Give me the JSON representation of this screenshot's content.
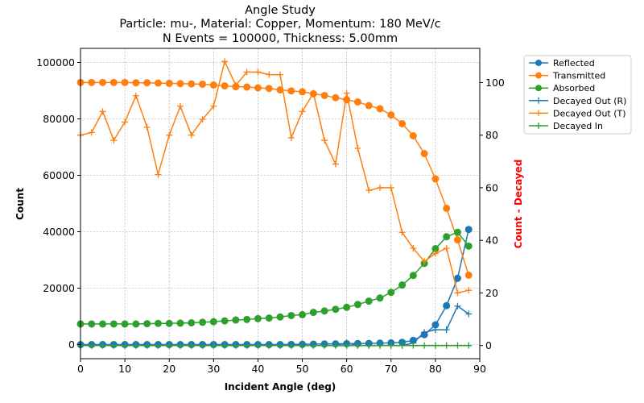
{
  "chart_data": {
    "type": "line",
    "title_lines": [
      "Angle Study",
      "Particle: mu-, Material: Copper, Momentum: 180 MeV/c",
      "N Events = 100000, Thickness: 5.00mm"
    ],
    "xlabel": "Incident Angle (deg)",
    "ylabel_left": "Count",
    "ylabel_right": "Count - Decayed",
    "ylabel_right_color": "#ff0000",
    "xlim": [
      0,
      90
    ],
    "ylim_left": [
      -5000,
      105000
    ],
    "ylim_right": [
      -5,
      113
    ],
    "x_ticks": [
      0,
      10,
      20,
      30,
      40,
      50,
      60,
      70,
      80,
      90
    ],
    "y_ticks_left": [
      0,
      20000,
      40000,
      60000,
      80000,
      100000
    ],
    "y_ticks_right": [
      0,
      20,
      40,
      60,
      80,
      100
    ],
    "grid": true,
    "legend_position": "outside-right",
    "x": [
      0,
      2.5,
      5,
      7.5,
      10,
      12.5,
      15,
      17.5,
      20,
      22.5,
      25,
      27.5,
      30,
      32.5,
      35,
      37.5,
      40,
      42.5,
      45,
      47.5,
      50,
      52.5,
      55,
      57.5,
      60,
      62.5,
      65,
      67.5,
      70,
      72.5,
      75,
      77.5,
      80,
      82.5,
      85,
      87.5
    ],
    "series": [
      {
        "name": "Reflected",
        "axis": "left",
        "color": "#1f77b4",
        "marker": "circle",
        "values": [
          0,
          0,
          0,
          0,
          0,
          0,
          0,
          0,
          0,
          0,
          0,
          0,
          0,
          0,
          0,
          0,
          0,
          0,
          0,
          50,
          100,
          150,
          200,
          250,
          300,
          350,
          400,
          500,
          600,
          800,
          1500,
          3500,
          7000,
          13800,
          23500,
          40800
        ]
      },
      {
        "name": "Transmitted",
        "axis": "left",
        "color": "#ff7f0e",
        "marker": "circle",
        "values": [
          92900,
          92900,
          92900,
          92900,
          92900,
          92800,
          92800,
          92700,
          92600,
          92500,
          92400,
          92300,
          92000,
          91700,
          91400,
          91300,
          91000,
          90800,
          90300,
          89900,
          89600,
          88900,
          88300,
          87500,
          86800,
          86000,
          84700,
          83600,
          81400,
          78300,
          74000,
          67700,
          58700,
          48300,
          37100,
          24600
        ]
      },
      {
        "name": "Absorbed",
        "axis": "left",
        "color": "#2ca02c",
        "marker": "circle",
        "values": [
          7300,
          7300,
          7300,
          7300,
          7300,
          7300,
          7400,
          7500,
          7500,
          7600,
          7700,
          7900,
          8100,
          8400,
          8700,
          8900,
          9200,
          9400,
          9800,
          10300,
          10600,
          11400,
          11900,
          12500,
          13200,
          14200,
          15400,
          16500,
          18500,
          21100,
          24500,
          28800,
          34000,
          38200,
          39800,
          34900
        ]
      },
      {
        "name": "Decayed Out (R)",
        "axis": "right",
        "color": "#1f77b4",
        "marker": "plus",
        "values": [
          0,
          0,
          0,
          0,
          0,
          0,
          0,
          0,
          0,
          0,
          0,
          0,
          0,
          0,
          0,
          0,
          0,
          0,
          0,
          0,
          0,
          0,
          0,
          0,
          1,
          0,
          0,
          0,
          0,
          0,
          1,
          5,
          6,
          6,
          15,
          12
        ]
      },
      {
        "name": "Decayed Out (T)",
        "axis": "right",
        "color": "#ff7f0e",
        "marker": "plus",
        "values": [
          80,
          81,
          89,
          78,
          85,
          95,
          83,
          65,
          80,
          91,
          80,
          86,
          91,
          108,
          99,
          104,
          104,
          103,
          103,
          79,
          89,
          96,
          78,
          69,
          96,
          75,
          59,
          60,
          60,
          43,
          37,
          32,
          35,
          37,
          20,
          21
        ]
      },
      {
        "name": "Decayed In",
        "axis": "right",
        "color": "#2ca02c",
        "marker": "plus",
        "values": [
          0,
          0,
          0,
          0,
          0,
          0,
          0,
          0,
          0,
          0,
          0,
          0,
          0,
          0,
          0,
          0,
          0,
          0,
          0,
          0,
          0,
          0,
          0,
          0,
          0,
          0,
          0,
          0,
          0,
          0,
          0,
          0,
          0,
          0,
          0,
          0
        ]
      }
    ]
  }
}
